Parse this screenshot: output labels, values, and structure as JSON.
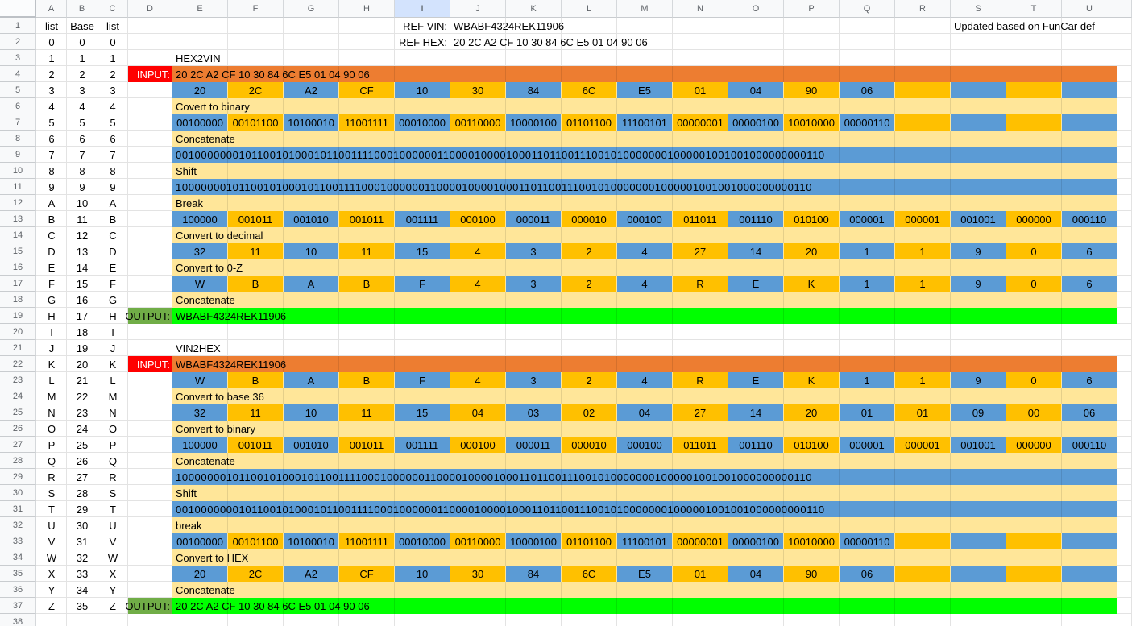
{
  "app_title": "VIN HEX conversion sheet",
  "colors": {
    "red": "#FF0000",
    "orange": "#ED7D31",
    "gold": "#FFC000",
    "blue": "#5B9BD5",
    "pale": "#FFE699",
    "green": "#00FF00",
    "olive": "#70AD47",
    "sel": "#D3E3FD",
    "headerbg": "#F8F9FA",
    "headertext": "#5F6368",
    "headerline": "#D5D8DB",
    "headerline2": "#C9CCCF",
    "gridline": "#E3E3E3"
  },
  "columns": [
    "A",
    "B",
    "C",
    "D",
    "E",
    "F",
    "G",
    "H",
    "I",
    "J",
    "K",
    "L",
    "M",
    "N",
    "O",
    "P",
    "Q",
    "R",
    "S",
    "T",
    "U"
  ],
  "selected_column": "I",
  "row_count": 38,
  "abc": {
    "rows": [
      [
        "list",
        "Base",
        "list"
      ],
      [
        "0",
        "0",
        "0"
      ],
      [
        "1",
        "1",
        "1"
      ],
      [
        "2",
        "2",
        "2"
      ],
      [
        "3",
        "3",
        "3"
      ],
      [
        "4",
        "4",
        "4"
      ],
      [
        "5",
        "5",
        "5"
      ],
      [
        "6",
        "6",
        "6"
      ],
      [
        "7",
        "7",
        "7"
      ],
      [
        "8",
        "8",
        "8"
      ],
      [
        "9",
        "9",
        "9"
      ],
      [
        "A",
        "10",
        "A"
      ],
      [
        "B",
        "11",
        "B"
      ],
      [
        "C",
        "12",
        "C"
      ],
      [
        "D",
        "13",
        "D"
      ],
      [
        "E",
        "14",
        "E"
      ],
      [
        "F",
        "15",
        "F"
      ],
      [
        "G",
        "16",
        "G"
      ],
      [
        "H",
        "17",
        "H"
      ],
      [
        "I",
        "18",
        "I"
      ],
      [
        "J",
        "19",
        "J"
      ],
      [
        "K",
        "20",
        "K"
      ],
      [
        "L",
        "21",
        "L"
      ],
      [
        "M",
        "22",
        "M"
      ],
      [
        "N",
        "23",
        "N"
      ],
      [
        "O",
        "24",
        "O"
      ],
      [
        "P",
        "25",
        "P"
      ],
      [
        "Q",
        "26",
        "Q"
      ],
      [
        "R",
        "27",
        "R"
      ],
      [
        "S",
        "28",
        "S"
      ],
      [
        "T",
        "29",
        "T"
      ],
      [
        "U",
        "30",
        "U"
      ],
      [
        "V",
        "31",
        "V"
      ],
      [
        "W",
        "32",
        "W"
      ],
      [
        "X",
        "33",
        "X"
      ],
      [
        "Y",
        "34",
        "Y"
      ],
      [
        "Z",
        "35",
        "Z"
      ]
    ]
  },
  "sequences": {
    "hex13": [
      "20",
      "2C",
      "A2",
      "CF",
      "10",
      "30",
      "84",
      "6C",
      "E5",
      "01",
      "04",
      "90",
      "06"
    ],
    "bin13": [
      "00100000",
      "00101100",
      "10100010",
      "11001111",
      "00010000",
      "00110000",
      "10000100",
      "01101100",
      "11100101",
      "00000001",
      "00000100",
      "10010000",
      "00000110"
    ],
    "groups17": [
      "100000",
      "001011",
      "001010",
      "001011",
      "001111",
      "000100",
      "000011",
      "000010",
      "000100",
      "011011",
      "001110",
      "010100",
      "000001",
      "000001",
      "001001",
      "000000",
      "000110"
    ],
    "dec17": [
      "32",
      "11",
      "10",
      "11",
      "15",
      "4",
      "3",
      "2",
      "4",
      "27",
      "14",
      "20",
      "1",
      "1",
      "9",
      "0",
      "6"
    ],
    "chars17": [
      "W",
      "B",
      "A",
      "B",
      "F",
      "4",
      "3",
      "2",
      "4",
      "R",
      "E",
      "K",
      "1",
      "1",
      "9",
      "0",
      "6"
    ],
    "dec17pad": [
      "32",
      "11",
      "10",
      "11",
      "15",
      "04",
      "03",
      "02",
      "04",
      "27",
      "14",
      "20",
      "01",
      "01",
      "09",
      "00",
      "06"
    ]
  },
  "rows": [
    {
      "n": 1,
      "type": "free",
      "cells": [
        {
          "col": "I",
          "text": "REF VIN:",
          "align": "r"
        },
        {
          "col": "J",
          "text": "WBABF4324REK11906",
          "align": "l"
        },
        {
          "col": "S",
          "text": "Updated based on FunCar def",
          "align": "l"
        }
      ]
    },
    {
      "n": 2,
      "type": "free",
      "cells": [
        {
          "col": "I",
          "text": "REF HEX:",
          "align": "r"
        },
        {
          "col": "J",
          "text": "20 2C A2 CF 10 30 84 6C E5 01 04 90 06",
          "align": "l"
        }
      ]
    },
    {
      "n": 3,
      "type": "free",
      "cells": [
        {
          "col": "E",
          "text": "HEX2VIN",
          "align": "l"
        }
      ]
    },
    {
      "n": 4,
      "type": "io",
      "label": "INPUT:",
      "label_style": "redlbl",
      "bar": "orangebar",
      "text": "20 2C A2 CF 10 30 84 6C E5 01 04 90 06"
    },
    {
      "n": 5,
      "type": "vals",
      "seq": "hex13"
    },
    {
      "n": 6,
      "type": "step",
      "text": "Covert to binary"
    },
    {
      "n": 7,
      "type": "vals",
      "seq": "bin13"
    },
    {
      "n": 8,
      "type": "step",
      "text": "Concatenate"
    },
    {
      "n": 9,
      "type": "bin",
      "text": "00100000001011001010001011001111000100000011000010000100011011001110010100000001000001001001000000000110"
    },
    {
      "n": 10,
      "type": "step",
      "text": "Shift"
    },
    {
      "n": 11,
      "type": "bin",
      "text": "100000001011001010001011001111000100000011000010000100011011001110010100000001000001001001000000000110"
    },
    {
      "n": 12,
      "type": "step",
      "text": "Break"
    },
    {
      "n": 13,
      "type": "vals",
      "seq": "groups17"
    },
    {
      "n": 14,
      "type": "step",
      "text": "Convert to decimal"
    },
    {
      "n": 15,
      "type": "vals",
      "seq": "dec17"
    },
    {
      "n": 16,
      "type": "step",
      "text": "Convert to 0-Z"
    },
    {
      "n": 17,
      "type": "vals",
      "seq": "chars17"
    },
    {
      "n": 18,
      "type": "step",
      "text": "Concatenate"
    },
    {
      "n": 19,
      "type": "io",
      "label": "OUTPUT:",
      "label_style": "olivelbl",
      "bar": "greenbar",
      "text": "WBABF4324REK11906"
    },
    {
      "n": 20,
      "type": "empty"
    },
    {
      "n": 21,
      "type": "free",
      "cells": [
        {
          "col": "E",
          "text": "VIN2HEX",
          "align": "l"
        }
      ]
    },
    {
      "n": 22,
      "type": "io",
      "label": "INPUT:",
      "label_style": "redlbl",
      "bar": "orangebar",
      "text": "WBABF4324REK11906"
    },
    {
      "n": 23,
      "type": "vals",
      "seq": "chars17"
    },
    {
      "n": 24,
      "type": "step",
      "text": "Convert to base 36"
    },
    {
      "n": 25,
      "type": "vals",
      "seq": "dec17pad"
    },
    {
      "n": 26,
      "type": "step",
      "text": "Convert to binary"
    },
    {
      "n": 27,
      "type": "vals",
      "seq": "groups17"
    },
    {
      "n": 28,
      "type": "step",
      "text": "Concatenate"
    },
    {
      "n": 29,
      "type": "bin",
      "text": "100000001011001010001011001111000100000011000010000100011011001110010100000001000001001001000000000110"
    },
    {
      "n": 30,
      "type": "step",
      "text": "Shift"
    },
    {
      "n": 31,
      "type": "bin",
      "text": "00100000001011001010001011001111000100000011000010000100011011001110010100000001000001001001000000000110"
    },
    {
      "n": 32,
      "type": "step",
      "text": "break"
    },
    {
      "n": 33,
      "type": "vals",
      "seq": "bin13"
    },
    {
      "n": 34,
      "type": "step",
      "text": "Convert to HEX"
    },
    {
      "n": 35,
      "type": "vals",
      "seq": "hex13"
    },
    {
      "n": 36,
      "type": "step",
      "text": "Concatenate"
    },
    {
      "n": 37,
      "type": "io",
      "label": "OUTPUT:",
      "label_style": "olivelbl",
      "bar": "greenbar",
      "text": "20 2C A2 CF 10 30 84 6C E5 01 04 90 06"
    },
    {
      "n": 38,
      "type": "empty"
    }
  ]
}
